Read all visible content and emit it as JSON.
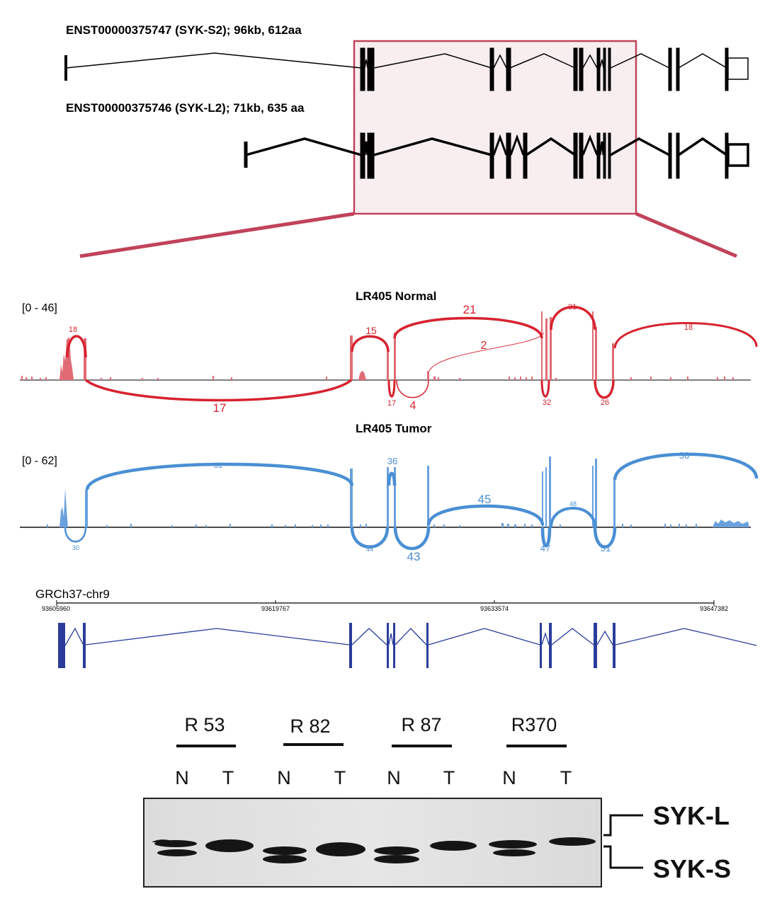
{
  "transcripts": {
    "short": {
      "label": "ENST00000375747 (SYK-S2); 96kb, 612aa"
    },
    "long": {
      "label": "ENST00000375746 (SYK-L2); 71kb, 635 aa"
    }
  },
  "sashimi": {
    "normal": {
      "title": "LR405 Normal",
      "range": "[0 - 46]",
      "color": "#d7232f",
      "junctions_above": [
        "18",
        "15",
        "21",
        "2",
        "31",
        "18"
      ],
      "junctions_below": [
        "17",
        "17",
        "4",
        "32",
        "26"
      ]
    },
    "tumor": {
      "title": "LR405 Tumor",
      "range": "[0 - 62]",
      "color": "#4a8fd4",
      "junctions_above": [
        "31",
        "36",
        "45",
        "48",
        "36"
      ],
      "junctions_below": [
        "30",
        "44",
        "43",
        "47",
        "51"
      ]
    }
  },
  "genome_track": {
    "assembly": "GRCh37-chr9",
    "ticks": [
      "93605960",
      "93619767",
      "93633574",
      "93647382"
    ],
    "color": "#2a3d9a"
  },
  "western_blot": {
    "samples": [
      "R 53",
      "R 82",
      "R 87",
      "R370"
    ],
    "lanes": [
      "N",
      "T",
      "N",
      "T",
      "N",
      "T",
      "N",
      "T"
    ],
    "bands": {
      "upper": "SYK-L",
      "lower": "SYK-S"
    }
  },
  "colors": {
    "zoom_box": "#c0435a",
    "zoom_fill": "#f8eef0"
  }
}
